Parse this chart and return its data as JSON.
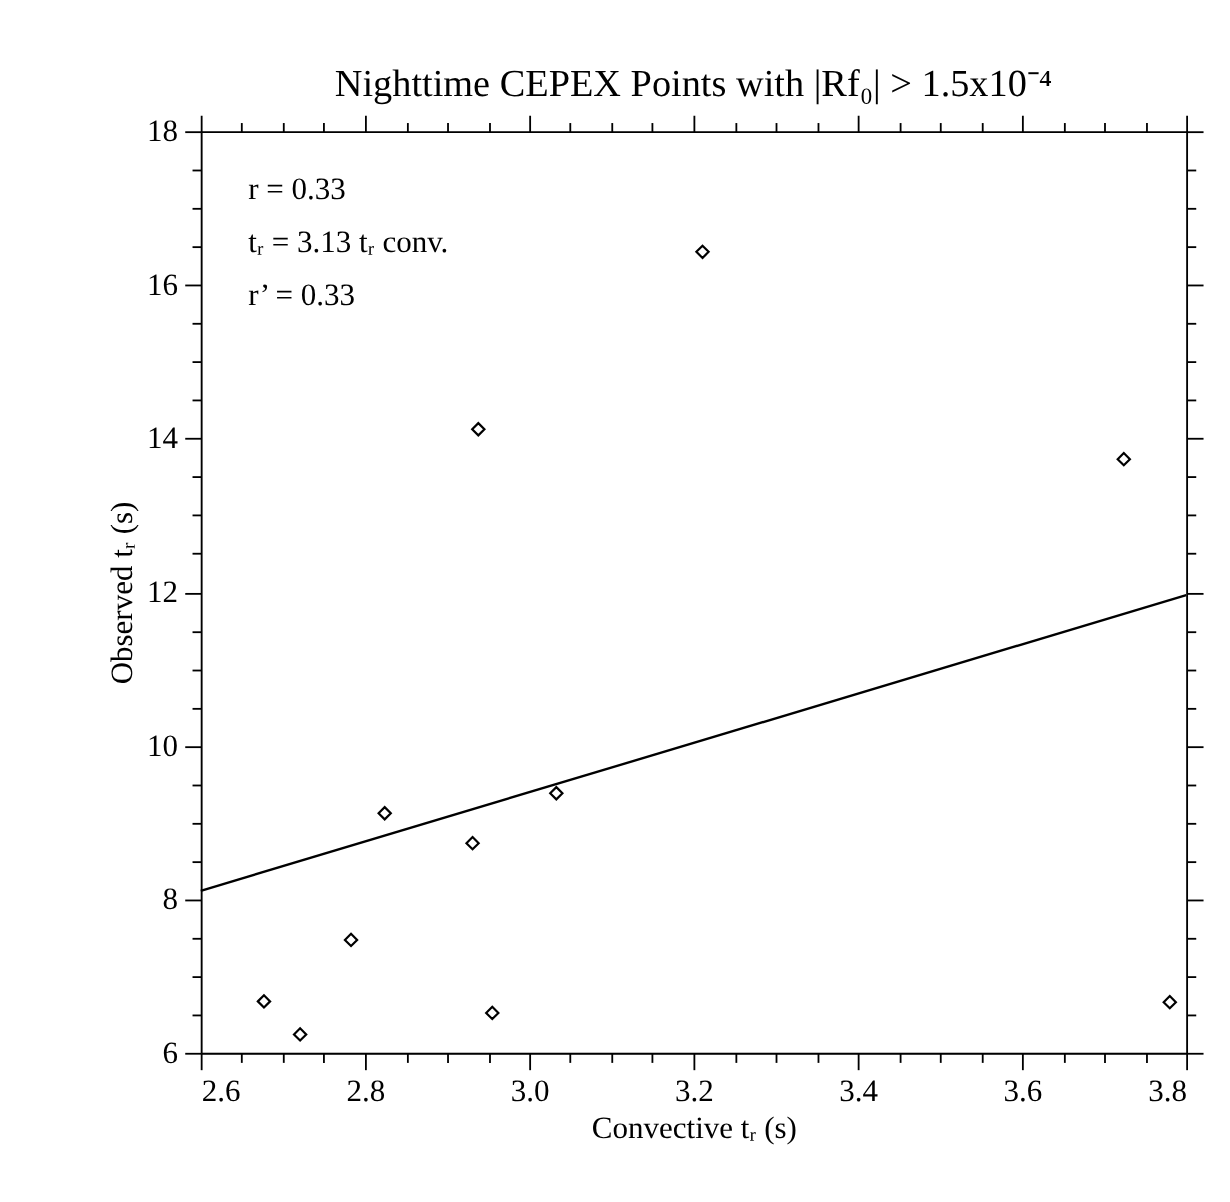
{
  "chart_data": {
    "type": "scatter",
    "title": "Nighttime CEPEX Points with |Rf₀| > 1.5x10⁻⁴",
    "xlabel": "Convective tᵣ (s)",
    "ylabel": "Observed tᵣ (s)",
    "annotations": [
      "r = 0.33",
      "tᵣ = 3.13 tᵣ conv.",
      "r’ = 0.33"
    ],
    "marker": "diamond",
    "grid": false,
    "xlim": [
      2.6,
      3.8
    ],
    "ylim": [
      6,
      18
    ],
    "xticks": [
      2.6,
      {
        "value": 2.65,
        "label": null
      },
      {
        "value": 2.7,
        "label": null
      },
      {
        "value": 2.75,
        "label": null
      },
      2.8,
      {
        "value": 2.85,
        "label": null
      },
      {
        "value": 2.9,
        "label": null
      },
      {
        "value": 2.95,
        "label": null
      },
      {
        "value": 3.0,
        "label": "3.0"
      },
      {
        "value": 3.05,
        "label": null
      },
      {
        "value": 3.1,
        "label": null
      },
      {
        "value": 3.15,
        "label": null
      },
      3.2,
      {
        "value": 3.25,
        "label": null
      },
      {
        "value": 3.3,
        "label": null
      },
      {
        "value": 3.35,
        "label": null
      },
      3.4,
      {
        "value": 3.45,
        "label": null
      },
      {
        "value": 3.5,
        "label": null
      },
      {
        "value": 3.55,
        "label": null
      },
      3.6,
      {
        "value": 3.65,
        "label": null
      },
      {
        "value": 3.7,
        "label": null
      },
      {
        "value": 3.75,
        "label": null
      },
      3.8
    ],
    "yticks": [
      6,
      {
        "value": 6.5,
        "label": null
      },
      {
        "value": 7,
        "label": null
      },
      {
        "value": 7.5,
        "label": null
      },
      8,
      {
        "value": 8.5,
        "label": null
      },
      {
        "value": 9,
        "label": null
      },
      {
        "value": 9.5,
        "label": null
      },
      10,
      {
        "value": 10.5,
        "label": null
      },
      {
        "value": 11,
        "label": null
      },
      {
        "value": 11.5,
        "label": null
      },
      12,
      {
        "value": 12.5,
        "label": null
      },
      {
        "value": 13,
        "label": null
      },
      {
        "value": 13.5,
        "label": null
      },
      14,
      {
        "value": 14.5,
        "label": null
      },
      {
        "value": 15,
        "label": null
      },
      {
        "value": 15.5,
        "label": null
      },
      16,
      {
        "value": 16.5,
        "label": null
      },
      {
        "value": 17,
        "label": null
      },
      {
        "value": 17.5,
        "label": null
      },
      18
    ],
    "series": [
      {
        "color": "#000000",
        "x": [
          2.677,
          2.721,
          2.783,
          2.824,
          2.931,
          2.955,
          3.033,
          3.78,
          3.211,
          2.938,
          3.724
        ],
        "values": [
          6.67,
          6.24,
          7.47,
          9.12,
          8.73,
          6.52,
          9.38,
          6.66,
          16.43,
          14.12,
          13.73
        ]
      },
      {
        "type": "line",
        "color": "#000000",
        "line_style": "solid",
        "marker": "none",
        "x": [
          2.6,
          3.8
        ],
        "values": [
          8.11,
          11.96
        ]
      }
    ]
  }
}
